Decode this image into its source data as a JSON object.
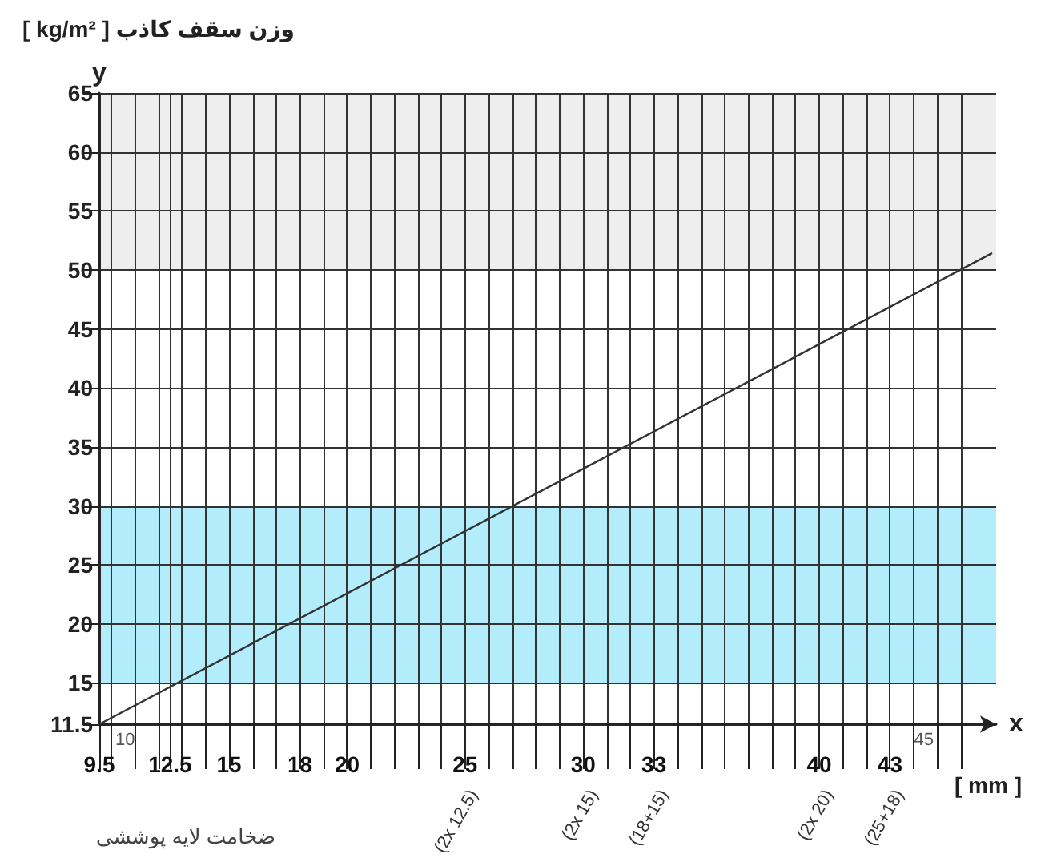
{
  "chart_data": {
    "type": "line",
    "ylabel": "[ kg/m² ] وزن سقف کاذب",
    "xlabel": "ضخامت لایه پوششی",
    "annotations": [
      "y",
      "x",
      "[ mm ]",
      "(2x 12.5)",
      "(2x 15)",
      "(18+15)",
      "(2x 20)",
      "(25+18)",
      "10",
      "45"
    ],
    "series": [
      {
        "x": [
          9.5,
          47.3
        ],
        "values": [
          11.5,
          51.4
        ],
        "color": "#333333"
      }
    ],
    "marker": "none",
    "xlim": [
      9.5,
      47.5
    ],
    "xticks": [
      9.5,
      {
        "value": 10,
        "label": null
      },
      {
        "value": 11,
        "label": null
      },
      {
        "value": 12,
        "label": null
      },
      12.5,
      {
        "value": 13,
        "label": null
      },
      {
        "value": 14,
        "label": null
      },
      15,
      {
        "value": 16,
        "label": null
      },
      {
        "value": 17,
        "label": null
      },
      18,
      {
        "value": 19,
        "label": null
      },
      20,
      {
        "value": 21,
        "label": null
      },
      {
        "value": 22,
        "label": null
      },
      {
        "value": 23,
        "label": null
      },
      {
        "value": 24,
        "label": null
      },
      25,
      {
        "value": 26,
        "label": null
      },
      {
        "value": 27,
        "label": null
      },
      {
        "value": 28,
        "label": null
      },
      {
        "value": 29,
        "label": null
      },
      30,
      {
        "value": 31,
        "label": null
      },
      {
        "value": 32,
        "label": null
      },
      33,
      {
        "value": 34,
        "label": null
      },
      {
        "value": 35,
        "label": null
      },
      {
        "value": 36,
        "label": null
      },
      {
        "value": 37,
        "label": null
      },
      {
        "value": 38,
        "label": null
      },
      {
        "value": 39,
        "label": null
      },
      40,
      {
        "value": 41,
        "label": null
      },
      {
        "value": 42,
        "label": null
      },
      43,
      {
        "value": 44,
        "label": null
      },
      {
        "value": 45,
        "label": null
      },
      {
        "value": 46,
        "label": null
      }
    ],
    "ylim": [
      11.5,
      65
    ],
    "yticks": [
      11.5,
      15,
      20,
      25,
      30,
      35,
      40,
      45,
      50,
      55,
      60,
      65
    ],
    "grid": true,
    "bands": [
      {
        "axis": "y",
        "from": 50,
        "to": 65,
        "color": "#eeeeee"
      },
      {
        "axis": "y",
        "from": 15,
        "to": 30,
        "color": "#b3ecfa"
      }
    ]
  }
}
